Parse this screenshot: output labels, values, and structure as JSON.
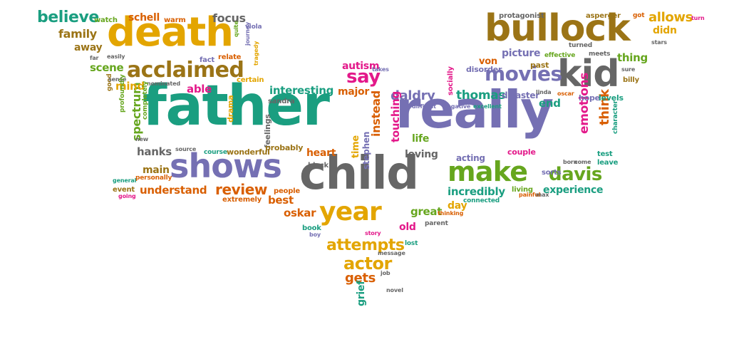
{
  "palette": {
    "green": "#1a9e80",
    "gold": "#e3a500",
    "olive": "#9b7416",
    "purple": "#7570b3",
    "gray": "#666666",
    "magenta": "#e3198a",
    "lime": "#66a61e",
    "orange": "#d95f02"
  },
  "words": [
    {
      "text": "father",
      "color": "green"
    },
    {
      "text": "really",
      "color": "purple"
    },
    {
      "text": "child",
      "color": "gray"
    },
    {
      "text": "death",
      "color": "gold"
    },
    {
      "text": "bullock",
      "color": "olive"
    },
    {
      "text": "kid",
      "color": "gray"
    },
    {
      "text": "shows",
      "color": "purple"
    },
    {
      "text": "make",
      "color": "lime"
    },
    {
      "text": "year",
      "color": "gold"
    },
    {
      "text": "acclaimed",
      "color": "olive"
    },
    {
      "text": "movies",
      "color": "purple"
    },
    {
      "text": "davis",
      "color": "lime"
    },
    {
      "text": "say",
      "color": "magenta"
    },
    {
      "text": "believe",
      "color": "green"
    },
    {
      "text": "review",
      "color": "orange"
    },
    {
      "text": "attempts",
      "color": "gold"
    },
    {
      "text": "actor",
      "color": "gold"
    },
    {
      "text": "spectrum",
      "color": "lime"
    },
    {
      "text": "daldry",
      "color": "purple"
    },
    {
      "text": "thomas",
      "color": "green"
    },
    {
      "text": "interesting",
      "color": "green"
    },
    {
      "text": "incredibly",
      "color": "green"
    },
    {
      "text": "understand",
      "color": "orange"
    },
    {
      "text": "experience",
      "color": "green"
    },
    {
      "text": "picture",
      "color": "purple"
    },
    {
      "text": "emotions",
      "color": "magenta"
    },
    {
      "text": "think",
      "color": "orange"
    },
    {
      "text": "allows",
      "color": "gold"
    },
    {
      "text": "focus",
      "color": "gray"
    },
    {
      "text": "schell",
      "color": "orange"
    },
    {
      "text": "family",
      "color": "olive"
    },
    {
      "text": "away",
      "color": "olive"
    },
    {
      "text": "scene",
      "color": "lime"
    },
    {
      "text": "mind",
      "color": "gold"
    },
    {
      "text": "able",
      "color": "magenta"
    },
    {
      "text": "hanks",
      "color": "gray"
    },
    {
      "text": "main",
      "color": "olive"
    },
    {
      "text": "autism",
      "color": "magenta"
    },
    {
      "text": "major",
      "color": "orange"
    },
    {
      "text": "instead",
      "color": "orange"
    },
    {
      "text": "touching",
      "color": "magenta"
    },
    {
      "text": "life",
      "color": "lime"
    },
    {
      "text": "loving",
      "color": "gray"
    },
    {
      "text": "heart",
      "color": "orange"
    },
    {
      "text": "time",
      "color": "gold"
    },
    {
      "text": "stephen",
      "color": "purple"
    },
    {
      "text": "best",
      "color": "orange"
    },
    {
      "text": "oskar",
      "color": "orange"
    },
    {
      "text": "great",
      "color": "lime"
    },
    {
      "text": "old",
      "color": "magenta"
    },
    {
      "text": "day",
      "color": "gold"
    },
    {
      "text": "gets",
      "color": "orange"
    },
    {
      "text": "grief",
      "color": "green"
    },
    {
      "text": "von",
      "color": "orange"
    },
    {
      "text": "end",
      "color": "green"
    },
    {
      "text": "thing",
      "color": "lime"
    },
    {
      "text": "didn",
      "color": "gold"
    },
    {
      "text": "wonderful",
      "color": "olive"
    },
    {
      "text": "feelings",
      "color": "gray"
    },
    {
      "text": "probably",
      "color": "olive"
    },
    {
      "text": "people",
      "color": "orange"
    },
    {
      "text": "extremely",
      "color": "orange"
    },
    {
      "text": "book",
      "color": "green"
    },
    {
      "text": "watch",
      "color": "lime"
    },
    {
      "text": "warm",
      "color": "orange"
    },
    {
      "text": "fact",
      "color": "purple"
    },
    {
      "text": "relate",
      "color": "orange"
    },
    {
      "text": "certain",
      "color": "gold"
    },
    {
      "text": "drama",
      "color": "gold"
    },
    {
      "text": "sandra",
      "color": "gray"
    },
    {
      "text": "acting",
      "color": "purple"
    },
    {
      "text": "couple",
      "color": "magenta"
    },
    {
      "text": "disaster",
      "color": "purple"
    },
    {
      "text": "hope",
      "color": "purple"
    },
    {
      "text": "levels",
      "color": "green"
    },
    {
      "text": "test",
      "color": "green"
    },
    {
      "text": "leave",
      "color": "green"
    },
    {
      "text": "billy",
      "color": "olive"
    },
    {
      "text": "past",
      "color": "olive"
    },
    {
      "text": "effective",
      "color": "lime"
    },
    {
      "text": "disorder",
      "color": "purple"
    },
    {
      "text": "protagonist",
      "color": "gray"
    },
    {
      "text": "asperger",
      "color": "olive"
    },
    {
      "text": "got",
      "color": "orange"
    },
    {
      "text": "turned",
      "color": "gray"
    },
    {
      "text": "meets",
      "color": "gray"
    },
    {
      "text": "sorts",
      "color": "purple"
    },
    {
      "text": "living",
      "color": "lime"
    },
    {
      "text": "connected",
      "color": "green"
    },
    {
      "text": "parent",
      "color": "gray"
    },
    {
      "text": "lost",
      "color": "green"
    },
    {
      "text": "story",
      "color": "magenta"
    },
    {
      "text": "message",
      "color": "gray"
    },
    {
      "text": "job",
      "color": "gray"
    },
    {
      "text": "novel",
      "color": "gray"
    },
    {
      "text": "boy",
      "color": "purple"
    },
    {
      "text": "black",
      "color": "gray"
    },
    {
      "text": "event",
      "color": "olive"
    },
    {
      "text": "personally",
      "color": "orange"
    },
    {
      "text": "general",
      "color": "green"
    },
    {
      "text": "going",
      "color": "magenta"
    },
    {
      "text": "course",
      "color": "green"
    },
    {
      "text": "source",
      "color": "gray"
    },
    {
      "text": "new",
      "color": "gray"
    },
    {
      "text": "good",
      "color": "olive"
    },
    {
      "text": "far",
      "color": "gray"
    },
    {
      "text": "easily",
      "color": "gray"
    },
    {
      "text": "sense",
      "color": "gray"
    },
    {
      "text": "nominated",
      "color": "gray"
    },
    {
      "text": "viola",
      "color": "purple"
    },
    {
      "text": "quite",
      "color": "lime"
    },
    {
      "text": "journey",
      "color": "purple"
    },
    {
      "text": "tragedy",
      "color": "gold"
    },
    {
      "text": "takes",
      "color": "purple"
    },
    {
      "text": "socially",
      "color": "magenta"
    },
    {
      "text": "difficult",
      "color": "purple"
    },
    {
      "text": "negative",
      "color": "purple"
    },
    {
      "text": "excellent",
      "color": "green"
    },
    {
      "text": "linda",
      "color": "gray"
    },
    {
      "text": "oscar",
      "color": "orange"
    },
    {
      "text": "character",
      "color": "green"
    },
    {
      "text": "born",
      "color": "gray"
    },
    {
      "text": "come",
      "color": "gray"
    },
    {
      "text": "painful",
      "color": "orange"
    },
    {
      "text": "max",
      "color": "gray"
    },
    {
      "text": "thinking",
      "color": "orange"
    },
    {
      "text": "completely",
      "color": "lime"
    },
    {
      "text": "profoundly",
      "color": "lime"
    },
    {
      "text": "stars",
      "color": "gray"
    },
    {
      "text": "turn",
      "color": "magenta"
    },
    {
      "text": "sure",
      "color": "gray"
    }
  ]
}
